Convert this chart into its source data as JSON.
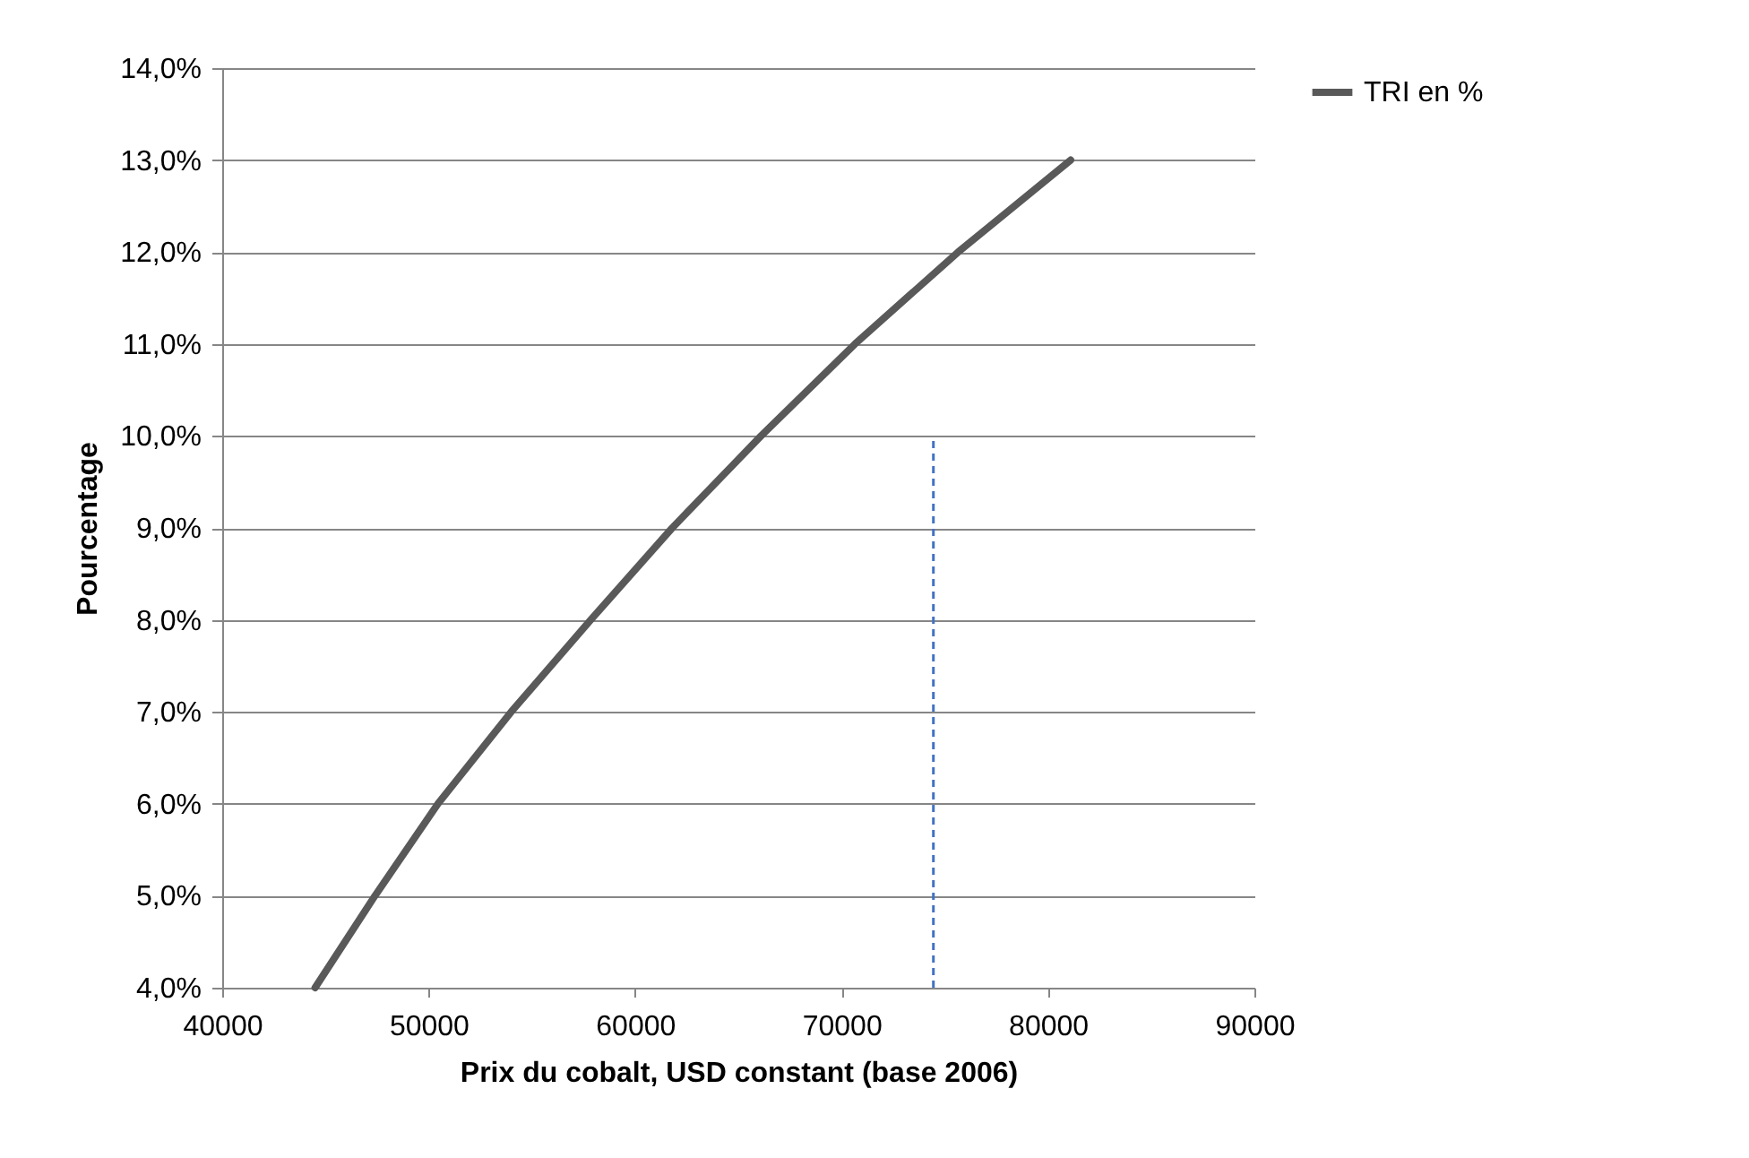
{
  "chart_data": {
    "type": "line",
    "xlabel": "Prix du cobalt, USD constant (base 2006)",
    "ylabel": "Pourcentage",
    "xlim": [
      40000,
      90000
    ],
    "xticks": [
      40000,
      50000,
      60000,
      70000,
      80000,
      90000
    ],
    "ylim": [
      4,
      14
    ],
    "yticks": [
      {
        "value": 4,
        "label": "4,0%"
      },
      {
        "value": 5,
        "label": "5,0%"
      },
      {
        "value": 6,
        "label": "6,0%"
      },
      {
        "value": 7,
        "label": "7,0%"
      },
      {
        "value": 8,
        "label": "8,0%"
      },
      {
        "value": 9,
        "label": "9,0%"
      },
      {
        "value": 10,
        "label": "10,0%"
      },
      {
        "value": 11,
        "label": "11,0%"
      },
      {
        "value": 12,
        "label": "12,0%"
      },
      {
        "value": 13,
        "label": "13,0%"
      },
      {
        "value": 14,
        "label": "14,0%"
      }
    ],
    "grid": "y",
    "legend": "right",
    "marker": "none",
    "series": [
      {
        "name": "TRI en %",
        "color": "#595959",
        "line_style": "solid",
        "x": [
          44500,
          47400,
          50450,
          54000,
          57850,
          61800,
          66100,
          70650,
          75650,
          81100
        ],
        "values": [
          4.0,
          5.0,
          6.0,
          7.0,
          8.0,
          9.0,
          10.0,
          11.0,
          12.0,
          13.0
        ]
      },
      {
        "type": "line",
        "color": "#4472c4",
        "line_style": "dashed",
        "x": [
          74450,
          74450
        ],
        "values": [
          4.0,
          10.0
        ]
      }
    ]
  }
}
